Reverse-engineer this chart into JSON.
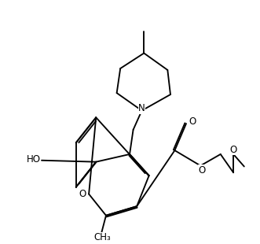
{
  "bg_color": "#ffffff",
  "line_color": "#000000",
  "line_width": 1.35,
  "font_size": 8.5,
  "figsize": [
    3.31,
    3.1
  ],
  "dpi": 100,
  "xlim": [
    0.0,
    9.5
  ],
  "ylim": [
    0.0,
    9.5
  ]
}
